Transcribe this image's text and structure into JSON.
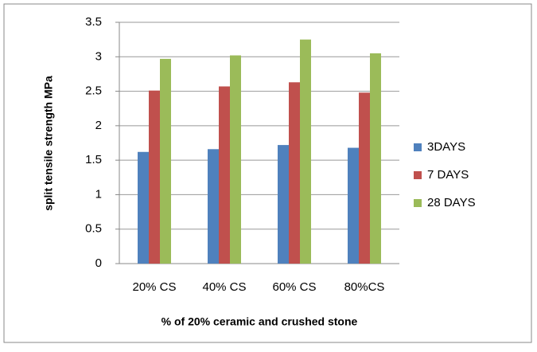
{
  "chart_data": {
    "type": "bar",
    "categories": [
      "20% CS",
      "40% CS",
      "60% CS",
      "80%CS"
    ],
    "series": [
      {
        "name": "3DAYS",
        "color": "#4f81bd",
        "values": [
          1.62,
          1.66,
          1.72,
          1.68
        ]
      },
      {
        "name": "7 DAYS",
        "color": "#c0504d",
        "values": [
          2.51,
          2.57,
          2.63,
          2.48
        ]
      },
      {
        "name": "28 DAYS",
        "color": "#9bbb59",
        "values": [
          2.97,
          3.02,
          3.25,
          3.05
        ]
      }
    ],
    "y_label": "split tensile strength MPa",
    "x_label": "% of 20% ceramic and crushed stone",
    "ylim": [
      0,
      3.5
    ],
    "yticks": [
      0,
      0.5,
      1,
      1.5,
      2,
      2.5,
      3,
      3.5
    ],
    "grid": true,
    "legend": "right"
  }
}
